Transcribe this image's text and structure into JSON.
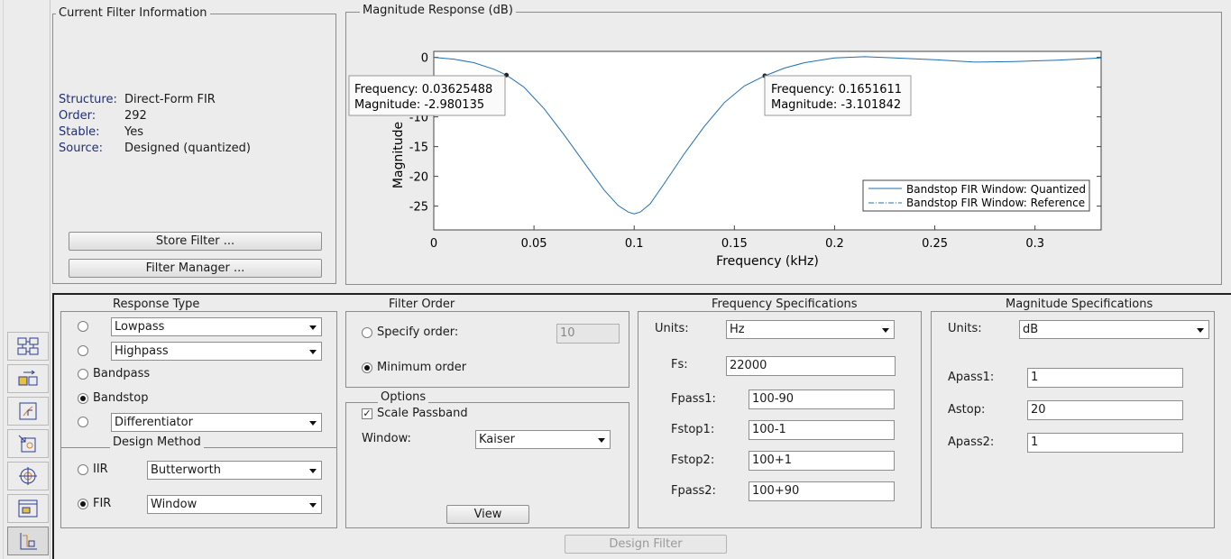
{
  "toolbar": {
    "buttons": [
      {
        "icon": "filter-grid-icon"
      },
      {
        "icon": "transform-icon"
      },
      {
        "icon": "pole-zero-icon"
      },
      {
        "icon": "import-icon"
      },
      {
        "icon": "target-icon"
      },
      {
        "icon": "realize-model-icon"
      },
      {
        "icon": "design-filter-icon"
      }
    ]
  },
  "filter_info": {
    "title": "Current Filter Information",
    "structure_label": "Structure:",
    "structure_value": "Direct-Form FIR",
    "order_label": "Order:",
    "order_value": "292",
    "stable_label": "Stable:",
    "stable_value": "Yes",
    "source_label": "Source:",
    "source_value": "Designed (quantized)",
    "store_button": "Store Filter ...",
    "manager_button": "Filter Manager ..."
  },
  "plot": {
    "panel_title": "Magnitude Response (dB)",
    "datatip1": {
      "freq_text": "Frequency: 0.03625488",
      "mag_text": "Magnitude: -2.980135"
    },
    "datatip2": {
      "freq_text": "Frequency: 0.1651611",
      "mag_text": "Magnitude: -3.101842"
    },
    "legend": {
      "series1": "Bandstop FIR Window: Quantized",
      "series2": "Bandstop FIR Window: Reference"
    }
  },
  "chart_data": {
    "type": "line",
    "xlabel": "Frequency (kHz)",
    "ylabel": "Magnitude",
    "xlim": [
      0,
      0.333
    ],
    "ylim": [
      -29,
      1
    ],
    "xticks": [
      "0",
      "0.05",
      "0.1",
      "0.15",
      "0.2",
      "0.25",
      "0.3"
    ],
    "xtick_values": [
      0,
      0.05,
      0.1,
      0.15,
      0.2,
      0.25,
      0.3
    ],
    "yticks": [
      "0",
      "-5",
      "-10",
      "-15",
      "-20",
      "-25"
    ],
    "ytick_values": [
      0,
      -5,
      -10,
      -15,
      -20,
      -25
    ],
    "series": [
      {
        "name": "Bandstop FIR Window: Quantized",
        "color": "#1f6fb4",
        "x": [
          0,
          0.01,
          0.02,
          0.03,
          0.03625,
          0.045,
          0.055,
          0.065,
          0.075,
          0.085,
          0.092,
          0.097,
          0.1,
          0.103,
          0.108,
          0.115,
          0.125,
          0.135,
          0.145,
          0.155,
          0.16516,
          0.175,
          0.185,
          0.2,
          0.215,
          0.23,
          0.25,
          0.27,
          0.29,
          0.31,
          0.333
        ],
        "y": [
          0,
          -0.3,
          -0.9,
          -2.0,
          -2.98,
          -5.0,
          -8.6,
          -13.0,
          -17.7,
          -22.3,
          -24.9,
          -26.0,
          -26.3,
          -26.0,
          -24.6,
          -21.2,
          -16.2,
          -11.6,
          -7.6,
          -4.8,
          -3.1,
          -1.8,
          -0.9,
          -0.1,
          0.1,
          -0.1,
          -0.4,
          -0.8,
          -0.7,
          -0.5,
          -0.1
        ]
      }
    ],
    "markers": [
      {
        "x": 0.03625,
        "y": -2.98
      },
      {
        "x": 0.16516,
        "y": -3.1
      }
    ]
  },
  "response_type": {
    "title": "Response Type",
    "lowpass_value": "Lowpass",
    "highpass_value": "Highpass",
    "bandpass_label": "Bandpass",
    "bandstop_label": "Bandstop",
    "differentiator_value": "Differentiator"
  },
  "design_method": {
    "title": "Design Method",
    "iir_label": "IIR",
    "iir_value": "Butterworth",
    "fir_label": "FIR",
    "fir_value": "Window"
  },
  "filter_order": {
    "title": "Filter Order",
    "specify_label": "Specify order:",
    "specify_value": "10",
    "minimum_label": "Minimum order"
  },
  "options": {
    "title": "Options",
    "scale_label": "Scale Passband",
    "window_label": "Window:",
    "window_value": "Kaiser",
    "view_button": "View"
  },
  "freq_specs": {
    "title": "Frequency Specifications",
    "units_label": "Units:",
    "units_value": "Hz",
    "fs_label": "Fs:",
    "fs_value": "22000",
    "fpass1_label": "Fpass1:",
    "fpass1_value": "100-90",
    "fstop1_label": "Fstop1:",
    "fstop1_value": "100-1",
    "fstop2_label": "Fstop2:",
    "fstop2_value": "100+1",
    "fpass2_label": "Fpass2:",
    "fpass2_value": "100+90"
  },
  "mag_specs": {
    "title": "Magnitude Specifications",
    "units_label": "Units:",
    "units_value": "dB",
    "apass1_label": "Apass1:",
    "apass1_value": "1",
    "astop_label": "Astop:",
    "astop_value": "20",
    "apass2_label": "Apass2:",
    "apass2_value": "1"
  },
  "design_button": "Design Filter"
}
